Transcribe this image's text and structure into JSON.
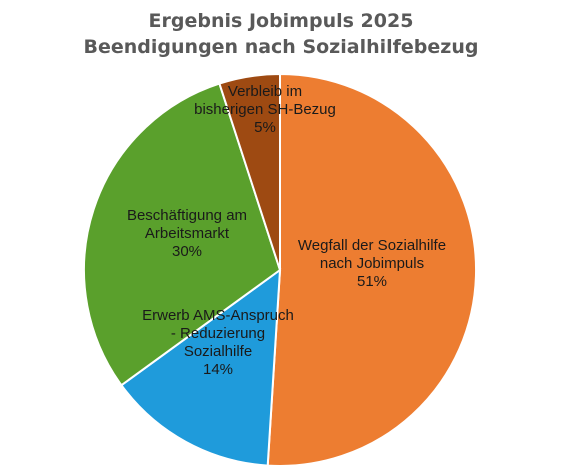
{
  "chart_data": {
    "type": "pie",
    "title": "Ergebnis Jobimpuls 2025",
    "subtitle": "Beendigungen nach Sozialhilfebezug",
    "slices": [
      {
        "label_lines": [
          "Wegfall der Sozialhilfe",
          "nach Jobimpuls"
        ],
        "value_label": "51%",
        "value": 51,
        "color": "#ED7D31"
      },
      {
        "label_lines": [
          "Erwerb AMS-Anspruch",
          "- Reduzierung",
          "Sozialhilfe"
        ],
        "value_label": "14%",
        "value": 14,
        "color": "#1F9BDB"
      },
      {
        "label_lines": [
          "Beschäftigung am",
          "Arbeitsmarkt"
        ],
        "value_label": "30%",
        "value": 30,
        "color": "#5AA02C"
      },
      {
        "label_lines": [
          "Verbleib im",
          "bisherigen SH-Bezug"
        ],
        "value_label": "5%",
        "value": 5,
        "color": "#9E4A12"
      }
    ]
  }
}
